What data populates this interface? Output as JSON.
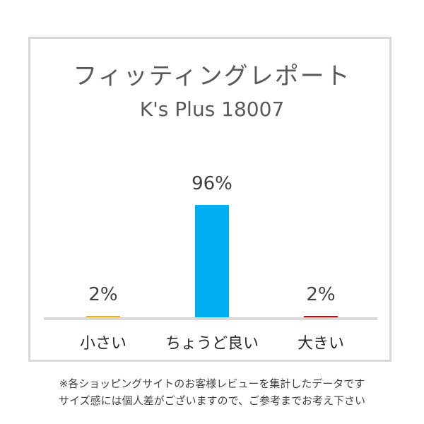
{
  "title": "フィッティングレポート",
  "subtitle": "K's Plus 18007",
  "chart_data": {
    "type": "bar",
    "categories": [
      "小さい",
      "ちょうど良い",
      "大きい"
    ],
    "values": [
      2,
      96,
      2
    ],
    "value_labels": [
      "2%",
      "96%",
      "2%"
    ],
    "colors": [
      "#f0b400",
      "#00b0f0",
      "#e00000"
    ],
    "ylim": [
      0,
      100
    ]
  },
  "notes": {
    "line1": "※各ショッピングサイトのお客様レビューを集計したデータです",
    "line2": "サイズ感には個人差がございますので、ご参考までお考え下さい"
  }
}
